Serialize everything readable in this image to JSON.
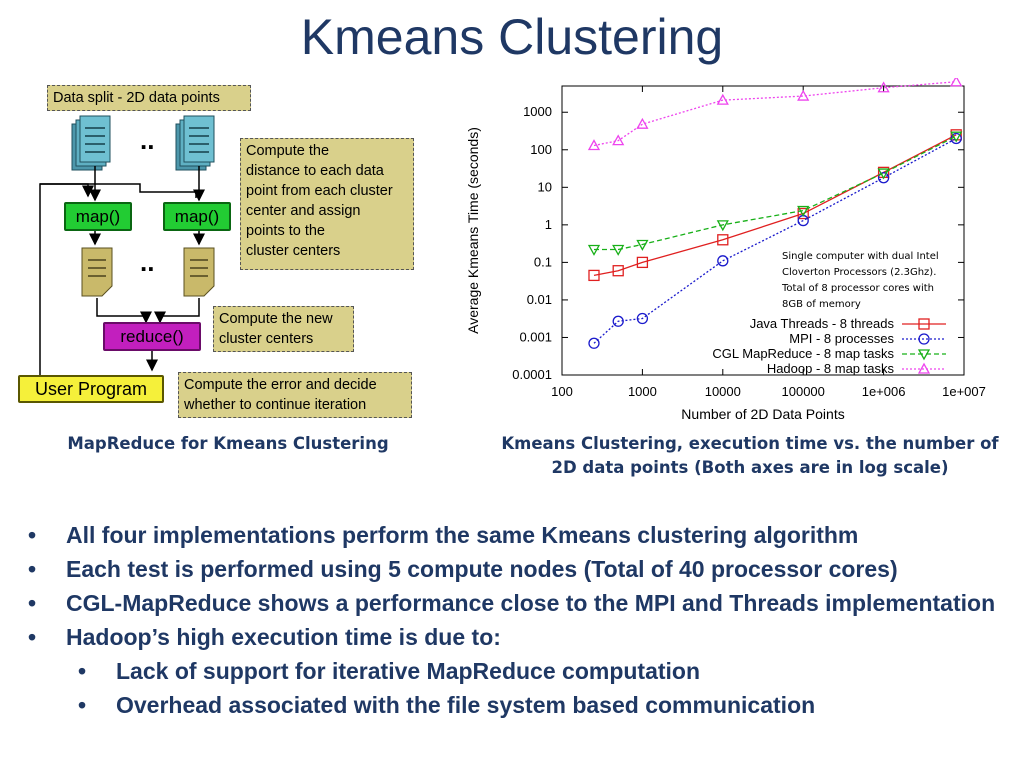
{
  "slide": {
    "title": "Kmeans Clustering",
    "caption_left": "MapReduce for Kmeans Clustering",
    "caption_right": "Kmeans Clustering, execution time vs. the number of 2D data points (Both axes are in log scale)"
  },
  "diagram": {
    "data_split": "Data split - 2D data points",
    "dots": "..",
    "map1": "map()",
    "map2": "map()",
    "reduce": "reduce()",
    "user_program": "User Program",
    "note_compute": [
      "Compute the",
      "distance to each data",
      "point from each cluster",
      "center and assign",
      "points to the",
      "cluster centers"
    ],
    "note_new_centers": [
      "Compute the new",
      "cluster centers"
    ],
    "note_error": [
      "Compute the error and decide",
      "whether to continue iteration"
    ]
  },
  "bullets": [
    {
      "text": "All four implementations perform the same Kmeans clustering algorithm",
      "level": 1
    },
    {
      "text": "Each test is performed using 5 compute nodes (Total of 40 processor cores)",
      "level": 1
    },
    {
      "text": "CGL-MapReduce shows a performance close to the MPI and Threads implementation",
      "level": 1
    },
    {
      "text": "Hadoop’s high execution time is due to:",
      "level": 1
    },
    {
      "text": "Lack of support for iterative MapReduce computation",
      "level": 2
    },
    {
      "text": "Overhead associated with the file system based communication",
      "level": 2
    }
  ],
  "bullet_glyph": "•",
  "chart_data": {
    "type": "line",
    "xlabel": "Number of 2D Data Points",
    "ylabel": "Average Kmeans Time (seconds)",
    "x_scale": "log",
    "y_scale": "log",
    "xlim": [
      100,
      10000000
    ],
    "ylim": [
      0.0001,
      5000
    ],
    "x_ticks": [
      {
        "v": 100,
        "label": "100"
      },
      {
        "v": 1000,
        "label": "1000"
      },
      {
        "v": 10000,
        "label": "10000"
      },
      {
        "v": 100000,
        "label": "100000"
      },
      {
        "v": 1000000,
        "label": "1e+006"
      },
      {
        "v": 10000000,
        "label": "1e+007"
      }
    ],
    "y_ticks": [
      {
        "v": 0.0001,
        "label": "0.0001"
      },
      {
        "v": 0.001,
        "label": "0.001"
      },
      {
        "v": 0.01,
        "label": "0.01"
      },
      {
        "v": 0.1,
        "label": "0.1"
      },
      {
        "v": 1,
        "label": "1"
      },
      {
        "v": 10,
        "label": "10"
      },
      {
        "v": 100,
        "label": "100"
      },
      {
        "v": 1000,
        "label": "1000"
      }
    ],
    "annotation": [
      "Single computer with dual Intel",
      "Cloverton Processors (2.3Ghz).",
      "Total of 8 processor cores with",
      "8GB of memory"
    ],
    "legend_position": "bottom-right",
    "grid": false,
    "series": [
      {
        "name": "Java Threads - 8 threads",
        "color": "#e02020",
        "marker": "square",
        "dash": "solid",
        "x": [
          250,
          500,
          1000,
          10000,
          100000,
          1000000,
          8000000
        ],
        "y": [
          0.045,
          0.06,
          0.1,
          0.4,
          2.0,
          25,
          250
        ]
      },
      {
        "name": "MPI - 8 processes",
        "color": "#1a1acc",
        "marker": "circle",
        "dash": "dotted",
        "x": [
          250,
          500,
          1000,
          10000,
          100000,
          1000000,
          8000000
        ],
        "y": [
          0.0007,
          0.0027,
          0.0032,
          0.11,
          1.3,
          18,
          200
        ]
      },
      {
        "name": "CGL MapReduce - 8 map tasks",
        "color": "#18b018",
        "marker": "triangle-down",
        "dash": "dashed",
        "x": [
          250,
          500,
          1000,
          10000,
          100000,
          1000000,
          8000000
        ],
        "y": [
          0.22,
          0.22,
          0.3,
          1.0,
          2.4,
          24,
          230
        ]
      },
      {
        "name": "Hadoop - 8 map tasks",
        "color": "#ee44ee",
        "marker": "triangle-up",
        "dash": "dotted",
        "x": [
          250,
          500,
          1000,
          10000,
          100000,
          1000000,
          8000000
        ],
        "y": [
          130,
          175,
          480,
          2100,
          2700,
          4500,
          6500
        ]
      }
    ]
  }
}
